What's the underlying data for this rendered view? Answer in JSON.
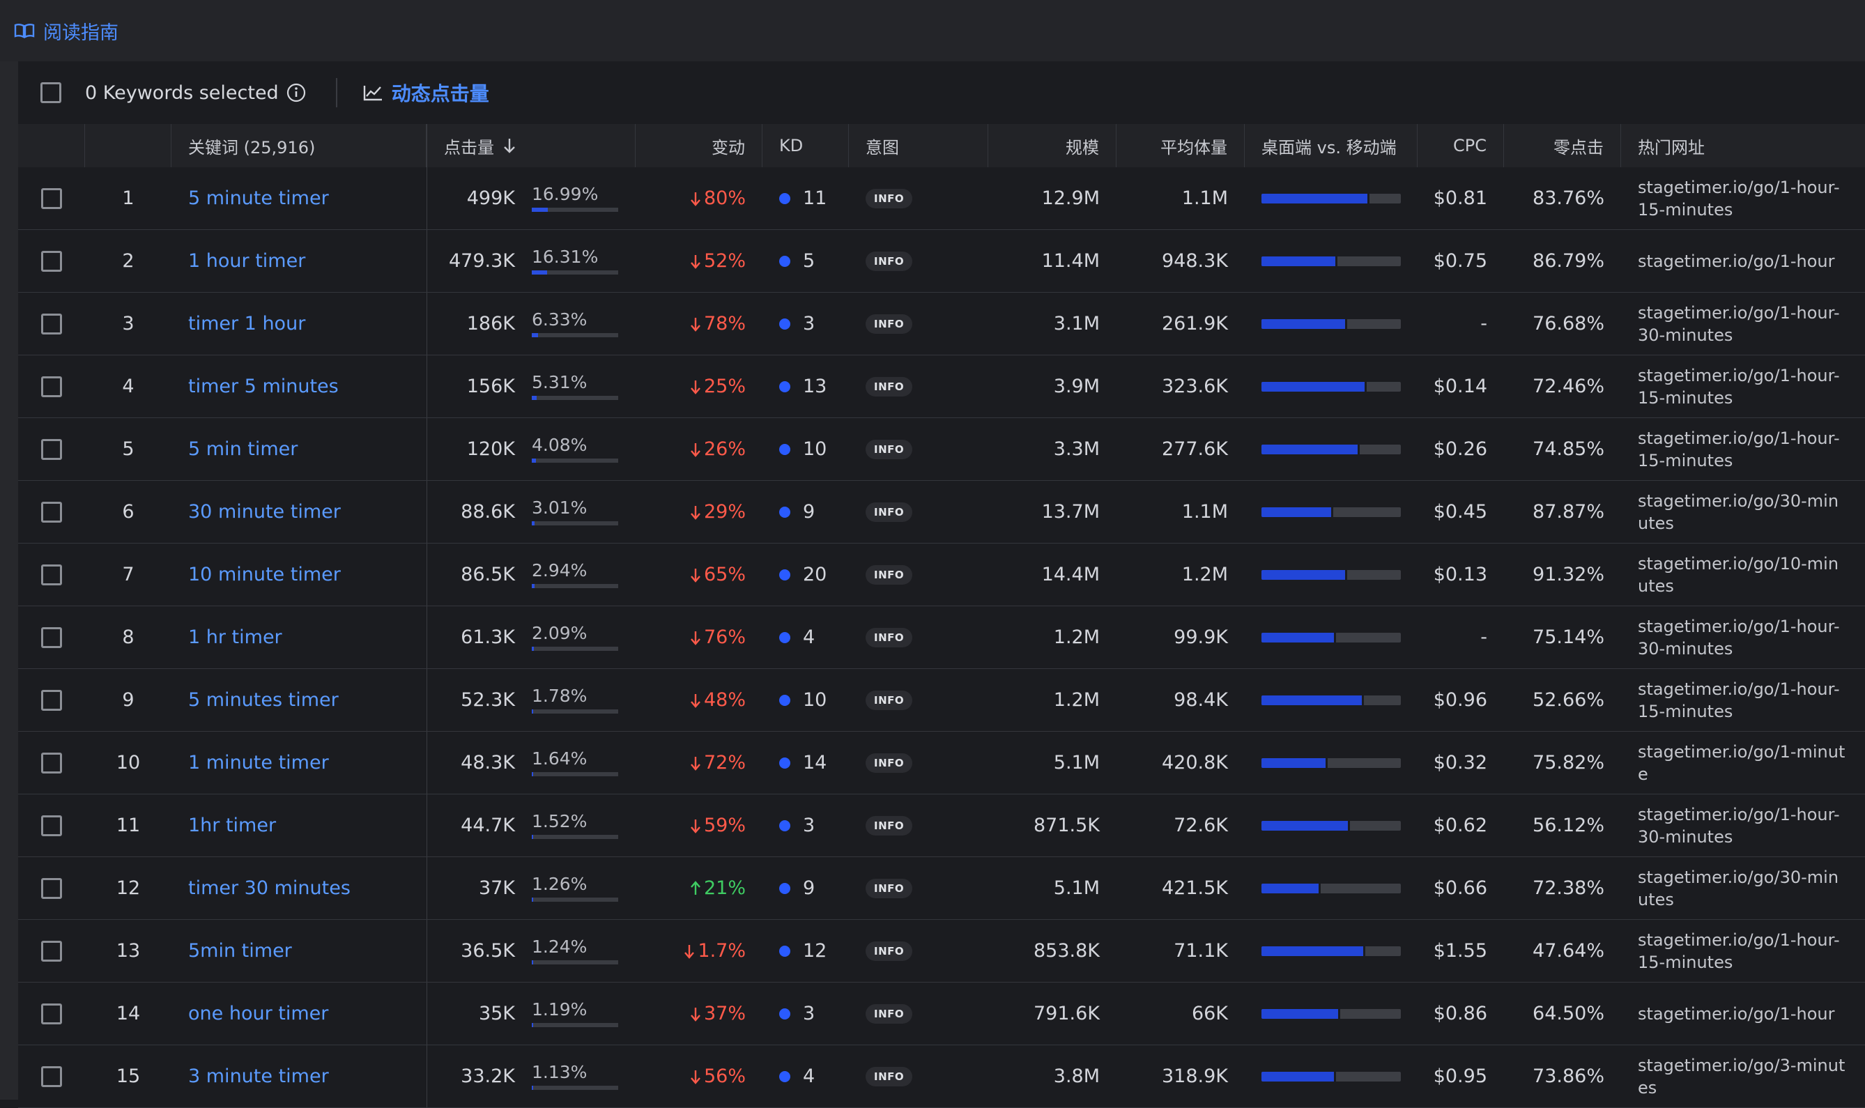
{
  "topbar": {
    "guide_label": "阅读指南"
  },
  "toolbar": {
    "selected_label": "0 Keywords selected",
    "dynamic_label": "动态点击量"
  },
  "columns": {
    "keyword": "关键词 (25,916)",
    "clicks": "点击量",
    "change": "变动",
    "kd": "KD",
    "intent": "意图",
    "volume": "规模",
    "avg_volume": "平均体量",
    "desktop_mobile": "桌面端 vs. 移动端",
    "cpc": "CPC",
    "zero_click": "零点击",
    "top_url": "热门网址"
  },
  "colors": {
    "accent": "#4d8dff",
    "down": "#ff5a4a",
    "up": "#3fcc62",
    "kd_dot": "#2a5bff",
    "bar": "#2246d8"
  },
  "rows": [
    {
      "num": "1",
      "keyword": "5 minute timer",
      "clicks": "499K",
      "pct": "16.99%",
      "pct_val": 16.99,
      "dir": "down",
      "change": "80%",
      "kd": "11",
      "intent": "INFO",
      "volume": "12.9M",
      "avg": "1.1M",
      "desktop": 0.76,
      "cpc": "$0.81",
      "zero": "83.76%",
      "url": "stagetimer.io/go/1-hour-15-minutes"
    },
    {
      "num": "2",
      "keyword": "1 hour timer",
      "clicks": "479.3K",
      "pct": "16.31%",
      "pct_val": 16.31,
      "dir": "down",
      "change": "52%",
      "kd": "5",
      "intent": "INFO",
      "volume": "11.4M",
      "avg": "948.3K",
      "desktop": 0.53,
      "cpc": "$0.75",
      "zero": "86.79%",
      "url": "stagetimer.io/go/1-hour"
    },
    {
      "num": "3",
      "keyword": "timer 1 hour",
      "clicks": "186K",
      "pct": "6.33%",
      "pct_val": 6.33,
      "dir": "down",
      "change": "78%",
      "kd": "3",
      "intent": "INFO",
      "volume": "3.1M",
      "avg": "261.9K",
      "desktop": 0.6,
      "cpc": "-",
      "zero": "76.68%",
      "url": "stagetimer.io/go/1-hour-30-minutes"
    },
    {
      "num": "4",
      "keyword": "timer 5 minutes",
      "clicks": "156K",
      "pct": "5.31%",
      "pct_val": 5.31,
      "dir": "down",
      "change": "25%",
      "kd": "13",
      "intent": "INFO",
      "volume": "3.9M",
      "avg": "323.6K",
      "desktop": 0.74,
      "cpc": "$0.14",
      "zero": "72.46%",
      "url": "stagetimer.io/go/1-hour-15-minutes"
    },
    {
      "num": "5",
      "keyword": "5 min timer",
      "clicks": "120K",
      "pct": "4.08%",
      "pct_val": 4.08,
      "dir": "down",
      "change": "26%",
      "kd": "10",
      "intent": "INFO",
      "volume": "3.3M",
      "avg": "277.6K",
      "desktop": 0.69,
      "cpc": "$0.26",
      "zero": "74.85%",
      "url": "stagetimer.io/go/1-hour-15-minutes"
    },
    {
      "num": "6",
      "keyword": "30 minute timer",
      "clicks": "88.6K",
      "pct": "3.01%",
      "pct_val": 3.01,
      "dir": "down",
      "change": "29%",
      "kd": "9",
      "intent": "INFO",
      "volume": "13.7M",
      "avg": "1.1M",
      "desktop": 0.5,
      "cpc": "$0.45",
      "zero": "87.87%",
      "url": "stagetimer.io/go/30-minutes"
    },
    {
      "num": "7",
      "keyword": "10 minute timer",
      "clicks": "86.5K",
      "pct": "2.94%",
      "pct_val": 2.94,
      "dir": "down",
      "change": "65%",
      "kd": "20",
      "intent": "INFO",
      "volume": "14.4M",
      "avg": "1.2M",
      "desktop": 0.6,
      "cpc": "$0.13",
      "zero": "91.32%",
      "url": "stagetimer.io/go/10-minutes"
    },
    {
      "num": "8",
      "keyword": "1 hr timer",
      "clicks": "61.3K",
      "pct": "2.09%",
      "pct_val": 2.09,
      "dir": "down",
      "change": "76%",
      "kd": "4",
      "intent": "INFO",
      "volume": "1.2M",
      "avg": "99.9K",
      "desktop": 0.52,
      "cpc": "-",
      "zero": "75.14%",
      "url": "stagetimer.io/go/1-hour-30-minutes"
    },
    {
      "num": "9",
      "keyword": "5 minutes timer",
      "clicks": "52.3K",
      "pct": "1.78%",
      "pct_val": 1.78,
      "dir": "down",
      "change": "48%",
      "kd": "10",
      "intent": "INFO",
      "volume": "1.2M",
      "avg": "98.4K",
      "desktop": 0.72,
      "cpc": "$0.96",
      "zero": "52.66%",
      "url": "stagetimer.io/go/1-hour-15-minutes"
    },
    {
      "num": "10",
      "keyword": "1 minute timer",
      "clicks": "48.3K",
      "pct": "1.64%",
      "pct_val": 1.64,
      "dir": "down",
      "change": "72%",
      "kd": "14",
      "intent": "INFO",
      "volume": "5.1M",
      "avg": "420.8K",
      "desktop": 0.46,
      "cpc": "$0.32",
      "zero": "75.82%",
      "url": "stagetimer.io/go/1-minute"
    },
    {
      "num": "11",
      "keyword": "1hr timer",
      "clicks": "44.7K",
      "pct": "1.52%",
      "pct_val": 1.52,
      "dir": "down",
      "change": "59%",
      "kd": "3",
      "intent": "INFO",
      "volume": "871.5K",
      "avg": "72.6K",
      "desktop": 0.62,
      "cpc": "$0.62",
      "zero": "56.12%",
      "url": "stagetimer.io/go/1-hour-30-minutes"
    },
    {
      "num": "12",
      "keyword": "timer 30 minutes",
      "clicks": "37K",
      "pct": "1.26%",
      "pct_val": 1.26,
      "dir": "up",
      "change": "21%",
      "kd": "9",
      "intent": "INFO",
      "volume": "5.1M",
      "avg": "421.5K",
      "desktop": 0.41,
      "cpc": "$0.66",
      "zero": "72.38%",
      "url": "stagetimer.io/go/30-minutes"
    },
    {
      "num": "13",
      "keyword": "5min timer",
      "clicks": "36.5K",
      "pct": "1.24%",
      "pct_val": 1.24,
      "dir": "down",
      "change": "1.7%",
      "kd": "12",
      "intent": "INFO",
      "volume": "853.8K",
      "avg": "71.1K",
      "desktop": 0.73,
      "cpc": "$1.55",
      "zero": "47.64%",
      "url": "stagetimer.io/go/1-hour-15-minutes"
    },
    {
      "num": "14",
      "keyword": "one hour timer",
      "clicks": "35K",
      "pct": "1.19%",
      "pct_val": 1.19,
      "dir": "down",
      "change": "37%",
      "kd": "3",
      "intent": "INFO",
      "volume": "791.6K",
      "avg": "66K",
      "desktop": 0.55,
      "cpc": "$0.86",
      "zero": "64.50%",
      "url": "stagetimer.io/go/1-hour"
    },
    {
      "num": "15",
      "keyword": "3 minute timer",
      "clicks": "33.2K",
      "pct": "1.13%",
      "pct_val": 1.13,
      "dir": "down",
      "change": "56%",
      "kd": "4",
      "intent": "INFO",
      "volume": "3.8M",
      "avg": "318.9K",
      "desktop": 0.52,
      "cpc": "$0.95",
      "zero": "73.86%",
      "url": "stagetimer.io/go/3-minutes"
    }
  ]
}
